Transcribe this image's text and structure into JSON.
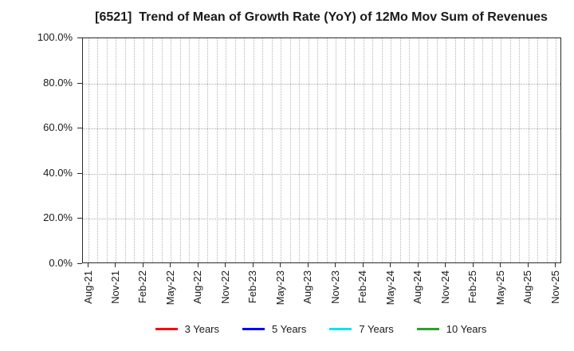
{
  "chart_data": {
    "type": "line",
    "title": "[6521]  Trend of Mean of Growth Rate (YoY) of 12Mo Mov Sum of Revenues",
    "x_tick_labels": [
      "Aug-21",
      "Nov-21",
      "Feb-22",
      "May-22",
      "Aug-22",
      "Nov-22",
      "Feb-23",
      "May-23",
      "Aug-23",
      "Nov-23",
      "Feb-24",
      "May-24",
      "Aug-24",
      "Nov-24",
      "Feb-25",
      "May-25",
      "Aug-25",
      "Nov-25"
    ],
    "x_minor_gridline_interval_months": 1,
    "y_tick_labels": [
      "0.0%",
      "20.0%",
      "40.0%",
      "60.0%",
      "80.0%",
      "100.0%"
    ],
    "ylim": [
      0,
      100
    ],
    "grid": true,
    "legend_position": "bottom-center",
    "series": [
      {
        "name": "3 Years",
        "color": "#ff0000",
        "values": []
      },
      {
        "name": "5 Years",
        "color": "#0000ff",
        "values": []
      },
      {
        "name": "7 Years",
        "color": "#00e5ee",
        "values": []
      },
      {
        "name": "10 Years",
        "color": "#2ca02c",
        "values": []
      }
    ],
    "note": "Legend lists four series but no data lines are drawn in the plot area; grid is empty."
  },
  "colors": {
    "background": "#ffffff",
    "text": "#1a1a1a",
    "axis_border": "#2a2a2a",
    "gridline_vertical": "#b5b5b5",
    "gridline_horizontal": "#a8a8a8"
  }
}
